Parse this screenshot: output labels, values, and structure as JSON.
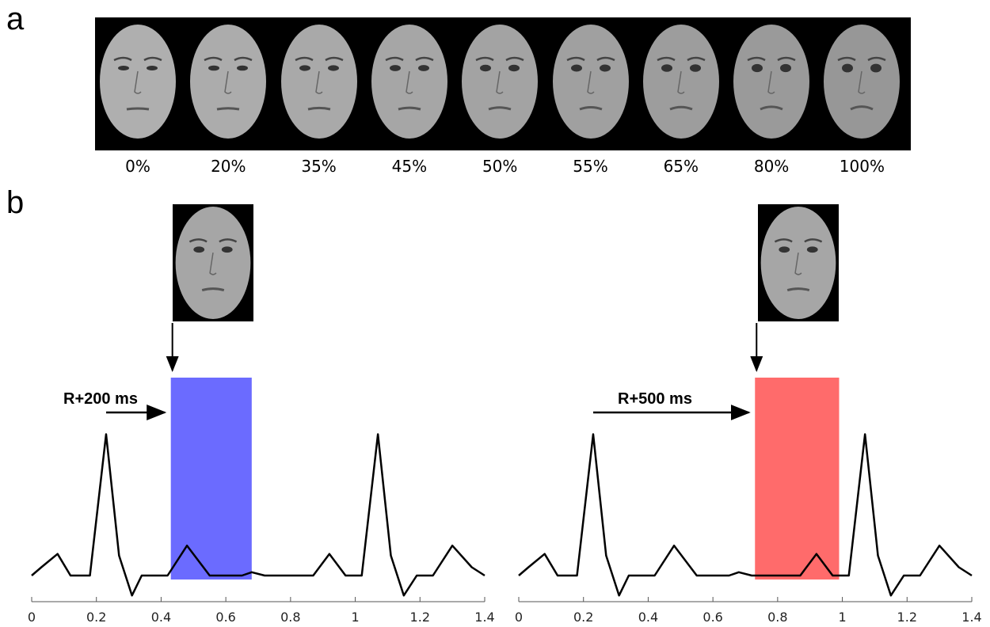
{
  "panels": {
    "a": "a",
    "b": "b"
  },
  "morph": {
    "levels": [
      "0%",
      "20%",
      "35%",
      "45%",
      "50%",
      "55%",
      "65%",
      "80%",
      "100%"
    ]
  },
  "timing": {
    "left": {
      "label": "R+200 ms",
      "window_start": 0.43,
      "window_end": 0.68,
      "color": "#6b6bff"
    },
    "right": {
      "label": "R+500 ms",
      "window_start": 0.73,
      "window_end": 0.99,
      "color": "#ff6b6b"
    }
  },
  "chart_data": {
    "type": "line",
    "x_ticks": [
      "0",
      "0.2",
      "0.4",
      "0.6",
      "0.8",
      "1",
      "1.2",
      "1.4"
    ],
    "xlim": [
      0,
      1.4
    ],
    "series": [
      {
        "x": [
          0.0,
          0.03,
          0.08,
          0.12,
          0.18,
          0.23,
          0.27,
          0.31,
          0.34,
          0.38,
          0.42,
          0.48,
          0.55,
          0.6,
          0.65,
          0.68,
          0.72,
          0.8,
          0.87,
          0.92,
          0.97,
          1.02,
          1.07,
          1.11,
          1.15,
          1.19,
          1.24,
          1.3,
          1.36,
          1.4
        ],
        "y": [
          0.0,
          0.05,
          0.13,
          0.0,
          0.0,
          0.85,
          0.12,
          -0.12,
          0.0,
          0.0,
          0.0,
          0.18,
          0.0,
          0.0,
          0.0,
          0.02,
          0.0,
          0.0,
          0.0,
          0.13,
          0.0,
          0.0,
          0.85,
          0.12,
          -0.12,
          0.0,
          0.0,
          0.18,
          0.05,
          0.0
        ]
      }
    ]
  }
}
